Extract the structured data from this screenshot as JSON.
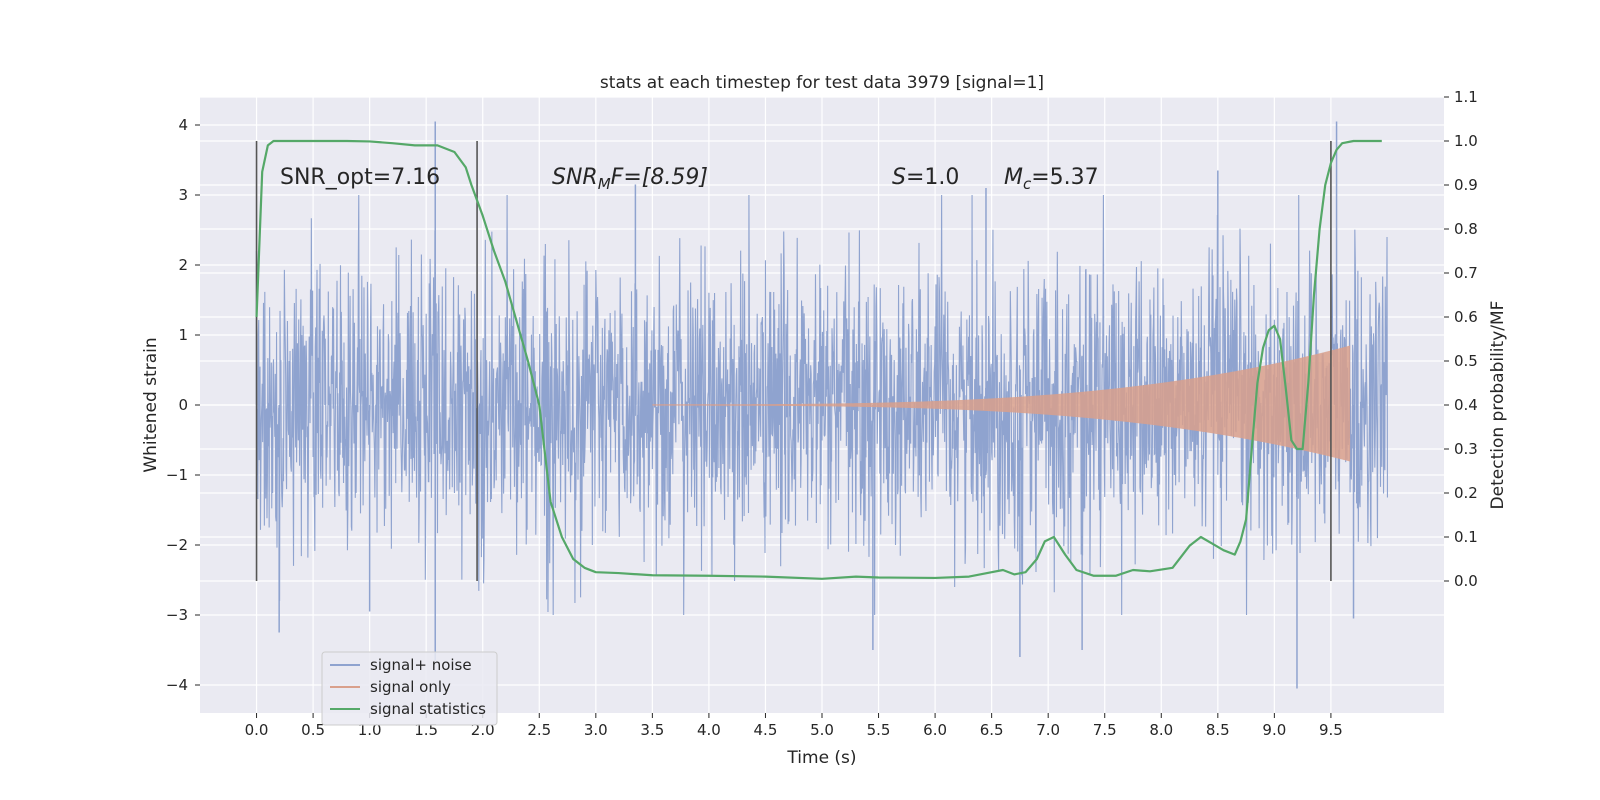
{
  "chart_data": {
    "type": "line",
    "title": "stats at each timestep for test data 3979 [signal=1]",
    "xlabel": "Time (s)",
    "ylabel": "Whitened strain",
    "ylabel_right": "Detection probability/MF",
    "xlim": [
      -0.5,
      10.5
    ],
    "ylim": [
      -4.4,
      4.4
    ],
    "ylim_right": [
      -0.3,
      1.1
    ],
    "x_ticks": [
      "0.0",
      "0.5",
      "1.0",
      "1.5",
      "2.0",
      "2.5",
      "3.0",
      "3.5",
      "4.0",
      "4.5",
      "5.0",
      "5.5",
      "6.0",
      "6.5",
      "7.0",
      "7.5",
      "8.0",
      "8.5",
      "9.0",
      "9.5"
    ],
    "y_ticks": [
      "4",
      "3",
      "2",
      "1",
      "0",
      "−1",
      "−2",
      "−3",
      "−4"
    ],
    "y_right_ticks": [
      "1.1",
      "1.0",
      "0.9",
      "0.8",
      "0.7",
      "0.6",
      "0.5",
      "0.4",
      "0.3",
      "0.2",
      "0.1",
      "0.0"
    ],
    "grid": true,
    "legend_position": "lower-left",
    "annotations": {
      "snr_opt": "SNR_opt=7.16",
      "snr_mf_sym": "SNR",
      "snr_mf_sub": "M",
      "snr_mf_rest": "F=[8.59]",
      "s_sym": "S",
      "s_rest": "=1.0",
      "mc_sym": "M",
      "mc_sub": "c",
      "mc_rest": "=5.37"
    },
    "vlines_x": [
      0.0,
      1.95,
      9.5
    ],
    "series": [
      {
        "name": "signal+ noise",
        "color": "#8fa3cf",
        "kind": "noise",
        "x_range": [
          0.0,
          10.0
        ],
        "noise_std": 1.0,
        "spikes": [
          {
            "x": 1.58,
            "y": 4.05
          },
          {
            "x": 9.55,
            "y": 4.05
          },
          {
            "x": 1.58,
            "y": -3.65
          },
          {
            "x": 9.2,
            "y": -4.05
          },
          {
            "x": 7.3,
            "y": -3.5
          },
          {
            "x": 5.45,
            "y": -3.5
          },
          {
            "x": 6.75,
            "y": -3.6
          },
          {
            "x": 0.2,
            "y": -3.25
          },
          {
            "x": 8.5,
            "y": 3.35
          },
          {
            "x": 3.35,
            "y": 3.15
          },
          {
            "x": 6.45,
            "y": 3.1
          },
          {
            "x": 9.7,
            "y": -3.05
          },
          {
            "x": 0.0,
            "y": 2.2
          },
          {
            "x": 1.0,
            "y": -2.95
          }
        ]
      },
      {
        "name": "signal only",
        "color": "#d9a08c",
        "kind": "chirp",
        "start_x": 3.5,
        "end_x": 9.67,
        "start_amp": 0.01,
        "end_amp": 0.85
      },
      {
        "name": "signal statistics",
        "color": "#55a868",
        "kind": "line",
        "axis": "right",
        "x": [
          0.0,
          0.05,
          0.1,
          0.15,
          0.2,
          0.3,
          0.5,
          0.8,
          1.0,
          1.2,
          1.4,
          1.6,
          1.75,
          1.85,
          1.9,
          2.0,
          2.1,
          2.2,
          2.3,
          2.4,
          2.5,
          2.6,
          2.7,
          2.8,
          2.9,
          3.0,
          3.2,
          3.5,
          4.0,
          4.5,
          5.0,
          5.3,
          5.5,
          6.0,
          6.3,
          6.5,
          6.6,
          6.7,
          6.8,
          6.9,
          6.97,
          7.05,
          7.15,
          7.25,
          7.4,
          7.6,
          7.75,
          7.9,
          8.1,
          8.25,
          8.35,
          8.45,
          8.55,
          8.65,
          8.7,
          8.75,
          8.8,
          8.85,
          8.9,
          8.95,
          9.0,
          9.05,
          9.1,
          9.15,
          9.2,
          9.25,
          9.3,
          9.35,
          9.4,
          9.45,
          9.5,
          9.55,
          9.6,
          9.7,
          9.8,
          9.95
        ],
        "values": [
          0.6,
          0.93,
          0.99,
          1.0,
          1.0,
          1.0,
          1.0,
          1.0,
          0.999,
          0.995,
          0.99,
          0.99,
          0.975,
          0.94,
          0.9,
          0.83,
          0.75,
          0.68,
          0.59,
          0.5,
          0.4,
          0.18,
          0.1,
          0.05,
          0.03,
          0.02,
          0.018,
          0.013,
          0.012,
          0.01,
          0.005,
          0.01,
          0.008,
          0.007,
          0.01,
          0.02,
          0.025,
          0.015,
          0.02,
          0.05,
          0.09,
          0.1,
          0.06,
          0.025,
          0.012,
          0.012,
          0.025,
          0.022,
          0.03,
          0.08,
          0.1,
          0.085,
          0.07,
          0.06,
          0.09,
          0.14,
          0.3,
          0.45,
          0.53,
          0.57,
          0.58,
          0.55,
          0.44,
          0.32,
          0.3,
          0.3,
          0.45,
          0.65,
          0.8,
          0.9,
          0.95,
          0.98,
          0.995,
          1.0,
          1.0,
          1.0
        ]
      }
    ]
  }
}
